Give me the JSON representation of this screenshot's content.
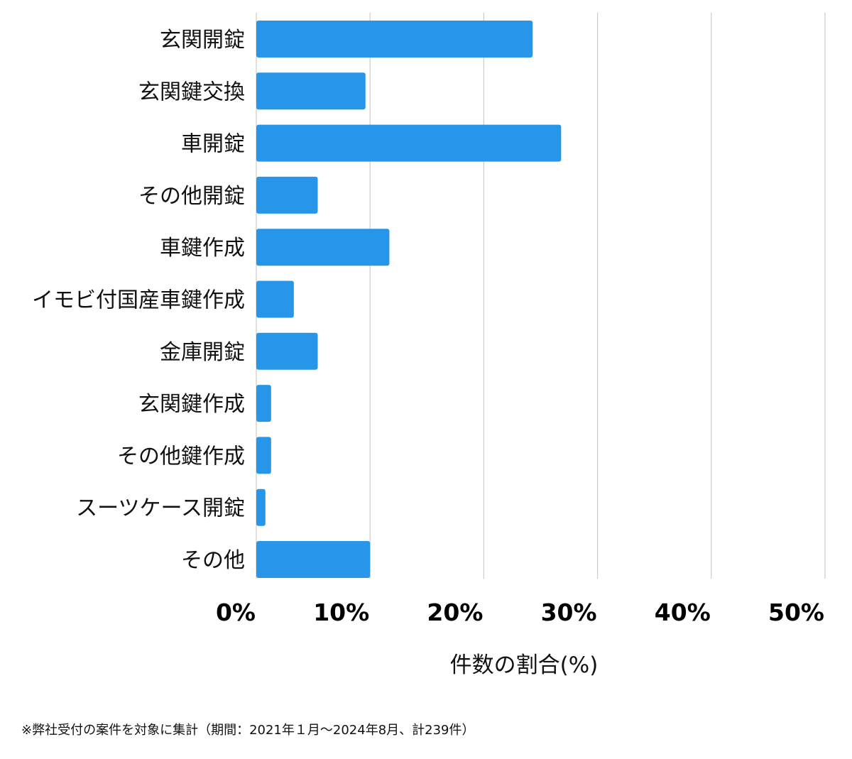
{
  "chart_data": {
    "type": "bar",
    "orientation": "horizontal",
    "categories": [
      "玄関開錠",
      "玄関鍵交換",
      "車開錠",
      "その他開錠",
      "車鍵作成",
      "イモビ付国産車鍵作成",
      "金庫開錠",
      "玄関鍵作成",
      "その他鍵作成",
      "スーツケース開錠",
      "その他"
    ],
    "values": [
      24.3,
      9.6,
      26.8,
      5.4,
      11.7,
      3.3,
      5.4,
      1.3,
      1.3,
      0.8,
      10.0
    ],
    "xlabel": "件数の割合(%)",
    "ylabel": "",
    "xlim": [
      0,
      50
    ],
    "xticks": [
      0,
      10,
      20,
      30,
      40,
      50
    ],
    "xtick_labels": [
      "0%",
      "10%",
      "20%",
      "30%",
      "40%",
      "50%"
    ],
    "grid": "vertical",
    "bar_color": "#2896e8",
    "grid_color": "#cccccc"
  },
  "footnote": "※弊社受付の案件を対象に集計（期間：2021年１月〜2024年8月、計239件）"
}
